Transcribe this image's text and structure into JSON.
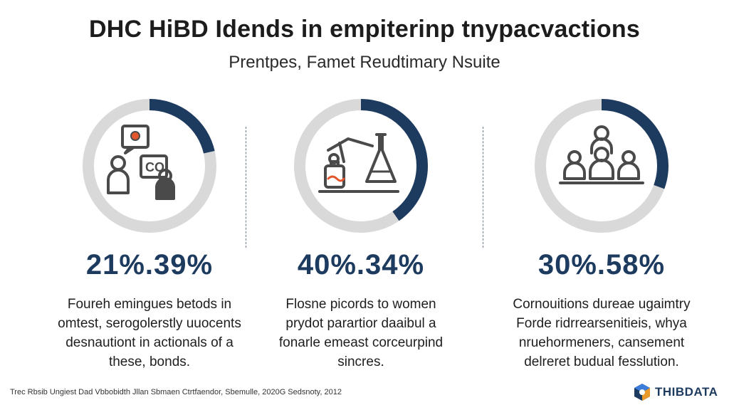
{
  "header": {
    "title": "DHC HiBD Idends in empiterinp tnypacvactions",
    "subtitle": "Prentpes, Famet Reudtimary Nsuite"
  },
  "chart_data": {
    "type": "donut",
    "series": [
      {
        "value": 21.39,
        "label": "21%.39%",
        "icon": "person-with-chat-icon",
        "description": [
          "Foureh emingues betods in",
          "omtest, serogolerstly uuocents",
          "desnautiont in actionals of a",
          "these, bonds."
        ]
      },
      {
        "value": 40.34,
        "label": "40%.34%",
        "icon": "lab-flask-icon",
        "description": [
          "Flosne picords to women",
          "prydot parartior daaibul a",
          "fonarle emeast corceurpind",
          "sincres."
        ]
      },
      {
        "value": 30.58,
        "label": "30%.58%",
        "icon": "group-meeting-icon",
        "description": [
          "Cornouitions dureae ugaimtry",
          "Forde ridrrearsenitieis, whya",
          "nruehormeners, cansement",
          "delreret budual fesslution."
        ]
      }
    ],
    "colors": {
      "track": "#d9d9d9",
      "fill": "#1d3a5f",
      "icon": "#4a4a4a",
      "accent": "#e4572e"
    }
  },
  "footer": {
    "source": "Trec Rbsib Ungiest Dad Vbbobidth Jllan Sbmaen Ctrtfaendor, Sbemulle, 2020G Sedsnoty, 2012"
  },
  "brand": {
    "name": "THIBDATA"
  }
}
